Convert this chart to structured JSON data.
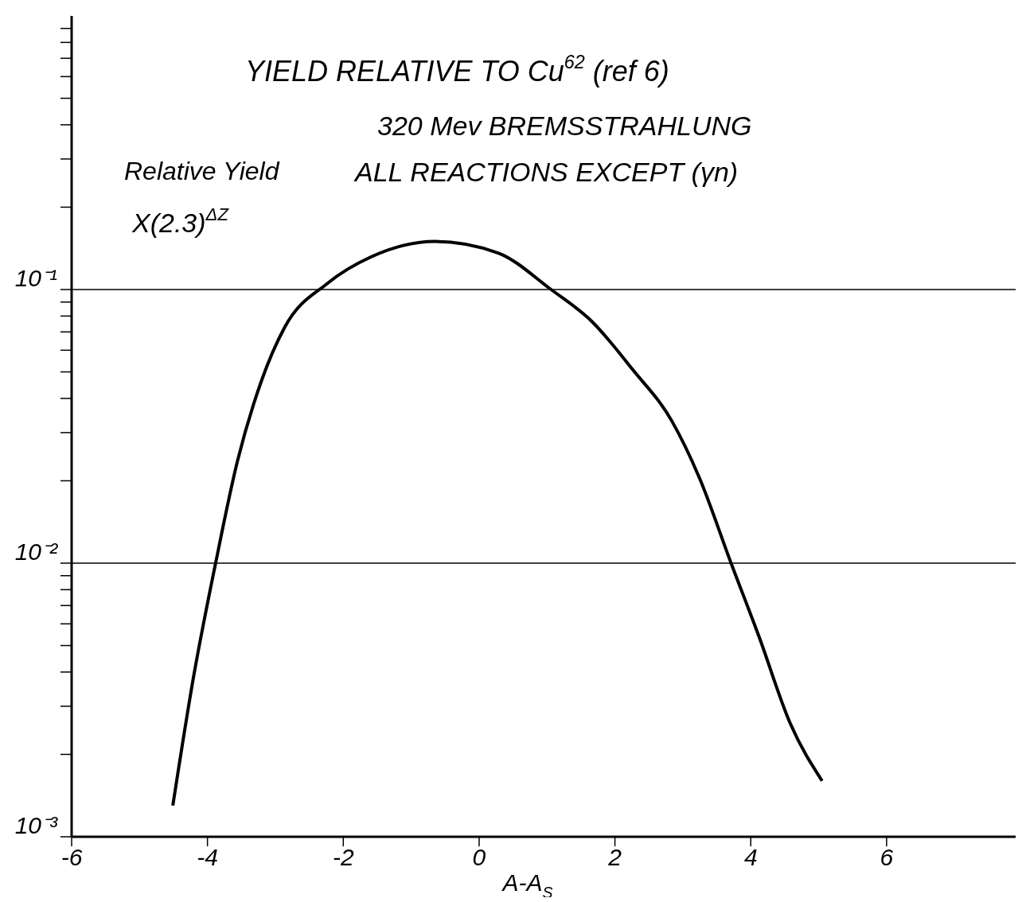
{
  "chart_data": {
    "type": "line",
    "title": "YIELD RELATIVE TO Cu$^{62}$ (ref 6)",
    "subtitle": "320 Mev BREMSSTRAHLUNG",
    "ylabel": "Relative Yield X(2.3)$^{ΔZ}$",
    "xlabel": "A-A$_{S}$",
    "annotations": [
      "ALL REACTIONS EXCEPT (γn)"
    ],
    "log": "y",
    "xlim": [
      -6,
      7.9
    ],
    "xticks": [
      -6,
      -4,
      -2,
      0,
      2,
      4,
      6
    ],
    "ylim": [
      0.001,
      1
    ],
    "yticks": [
      {
        "value": 0.001,
        "label": "10⁻³"
      },
      {
        "value": 0.002,
        "label": null
      },
      {
        "value": 0.003,
        "label": null
      },
      {
        "value": 0.004,
        "label": null
      },
      {
        "value": 0.005,
        "label": null
      },
      {
        "value": 0.006,
        "label": null
      },
      {
        "value": 0.007,
        "label": null
      },
      {
        "value": 0.008,
        "label": null
      },
      {
        "value": 0.009,
        "label": null
      },
      {
        "value": 0.01,
        "label": "10⁻²"
      },
      {
        "value": 0.02,
        "label": null
      },
      {
        "value": 0.03,
        "label": null
      },
      {
        "value": 0.04,
        "label": null
      },
      {
        "value": 0.05,
        "label": null
      },
      {
        "value": 0.06,
        "label": null
      },
      {
        "value": 0.07,
        "label": null
      },
      {
        "value": 0.08,
        "label": null
      },
      {
        "value": 0.09,
        "label": null
      },
      {
        "value": 0.1,
        "label": "10⁻¹"
      },
      {
        "value": 0.2,
        "label": null
      },
      {
        "value": 0.3,
        "label": null
      },
      {
        "value": 0.4,
        "label": null
      },
      {
        "value": 0.5,
        "label": null
      },
      {
        "value": 0.6,
        "label": null
      },
      {
        "value": 0.7,
        "label": null
      },
      {
        "value": 0.8,
        "label": null
      },
      {
        "value": 0.9,
        "label": null
      }
    ],
    "ref_lines": [
      {
        "axis": "y",
        "value": 0.01
      },
      {
        "axis": "y",
        "value": 0.1
      }
    ],
    "grid": false,
    "legend": false,
    "marker": "none",
    "line_style": "solid",
    "series": [
      {
        "color": "#000000",
        "x": [
          -4.51,
          -4.2,
          -3.88,
          -3.56,
          -3.21,
          -2.86,
          -2.24,
          -1.58,
          -0.65,
          0.28,
          1.06,
          1.67,
          2.26,
          2.84,
          3.24,
          3.71,
          4.12,
          4.58,
          5.05
        ],
        "values": [
          0.0013,
          0.0039,
          0.01,
          0.0235,
          0.046,
          0.073,
          0.105,
          0.132,
          0.15,
          0.136,
          0.1,
          0.076,
          0.051,
          0.033,
          0.0206,
          0.01,
          0.0054,
          0.0026,
          0.0016
        ]
      }
    ]
  }
}
